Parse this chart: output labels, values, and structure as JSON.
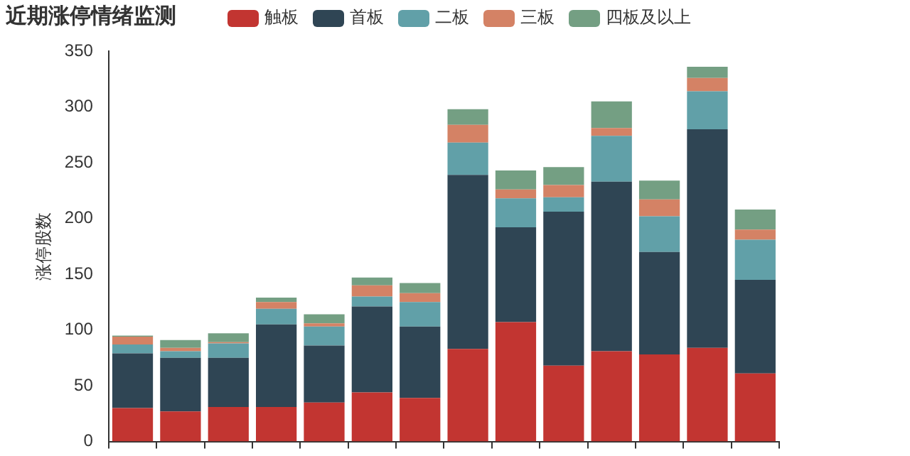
{
  "chart_data": {
    "type": "bar",
    "title": "近期涨停情绪监测",
    "ylabel": "涨停股数",
    "stacked": true,
    "legend": "top",
    "grid": false,
    "tick_labels": "y",
    "categories": [
      null,
      null,
      null,
      null,
      null,
      null,
      null,
      null,
      null,
      null,
      null,
      null,
      null,
      null
    ],
    "ylim": [
      0,
      350
    ],
    "yticks": [
      0,
      50,
      100,
      150,
      200,
      250,
      300,
      350
    ],
    "series": [
      {
        "name": "触板",
        "color": "#c23531",
        "values": [
          30,
          27,
          31,
          31,
          35,
          44,
          39,
          83,
          107,
          68,
          81,
          78,
          84,
          61
        ]
      },
      {
        "name": "首板",
        "color": "#2f4554",
        "values": [
          49,
          48,
          44,
          74,
          51,
          77,
          64,
          156,
          85,
          138,
          152,
          92,
          196,
          84
        ]
      },
      {
        "name": "二板",
        "color": "#61a0a8",
        "values": [
          8,
          6,
          13,
          14,
          17,
          9,
          22,
          29,
          26,
          13,
          41,
          32,
          34,
          36
        ]
      },
      {
        "name": "三板",
        "color": "#d48265",
        "values": [
          7,
          3,
          1,
          6,
          3,
          10,
          8,
          16,
          8,
          11,
          7,
          15,
          12,
          9
        ]
      },
      {
        "name": "四板及以上",
        "color": "#749f83",
        "values": [
          1,
          7,
          8,
          4,
          8,
          7,
          9,
          14,
          17,
          16,
          24,
          17,
          10,
          18
        ]
      }
    ]
  }
}
